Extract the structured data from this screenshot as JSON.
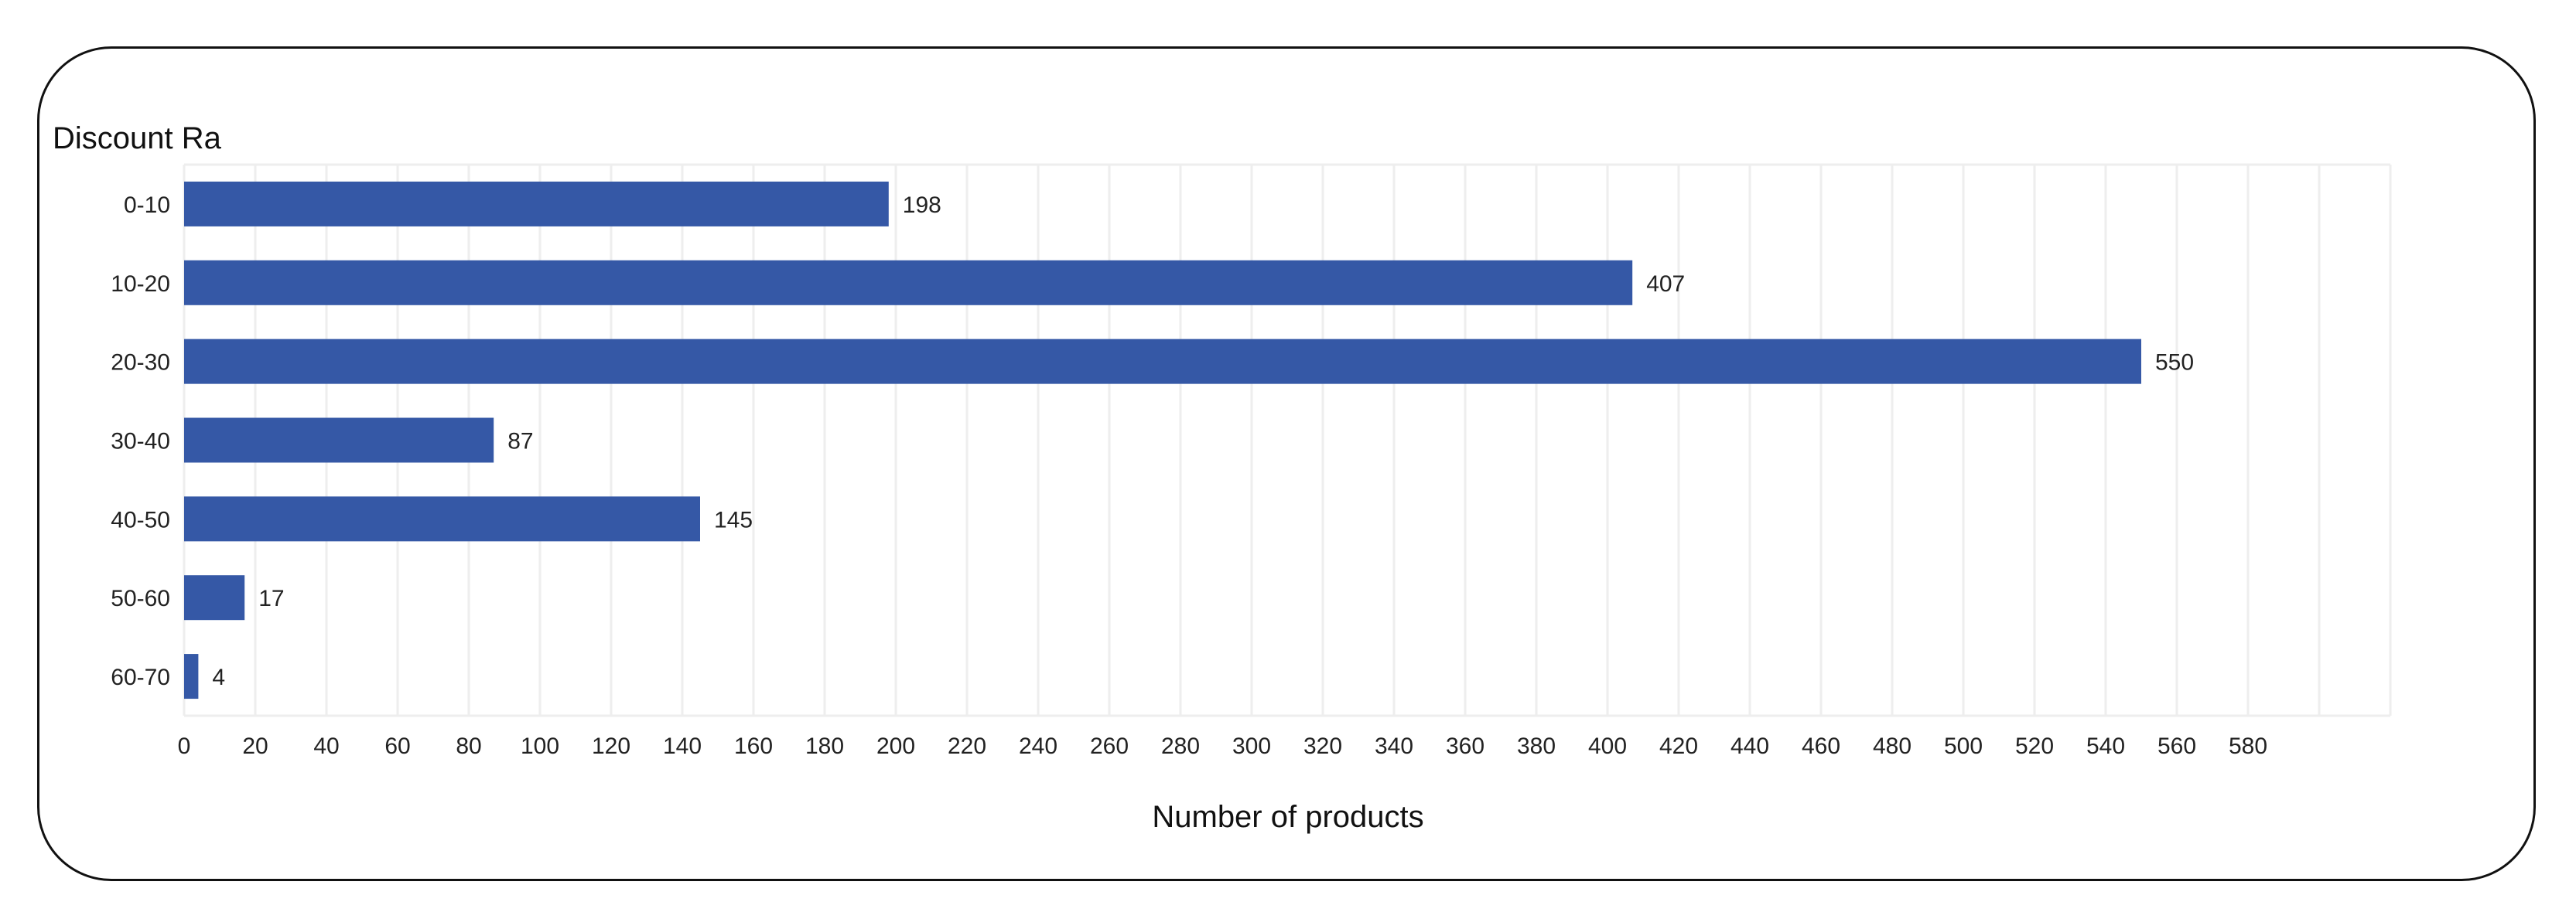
{
  "chart_data": {
    "type": "bar",
    "orientation": "horizontal",
    "title": "Discount Ra",
    "xlabel": "Number of products",
    "ylabel": "",
    "categories": [
      "0-10",
      "10-20",
      "20-30",
      "30-40",
      "40-50",
      "50-60",
      "60-70"
    ],
    "values": [
      198,
      407,
      550,
      87,
      145,
      17,
      4
    ],
    "xlim": [
      0,
      620
    ],
    "xticks": [
      0,
      20,
      40,
      60,
      80,
      100,
      120,
      140,
      160,
      180,
      200,
      220,
      240,
      260,
      280,
      300,
      320,
      340,
      360,
      380,
      400,
      420,
      440,
      460,
      480,
      500,
      520,
      540,
      560,
      580
    ],
    "grid": true,
    "bar_color": "#3558a6",
    "grid_color": "#eeeeee"
  }
}
